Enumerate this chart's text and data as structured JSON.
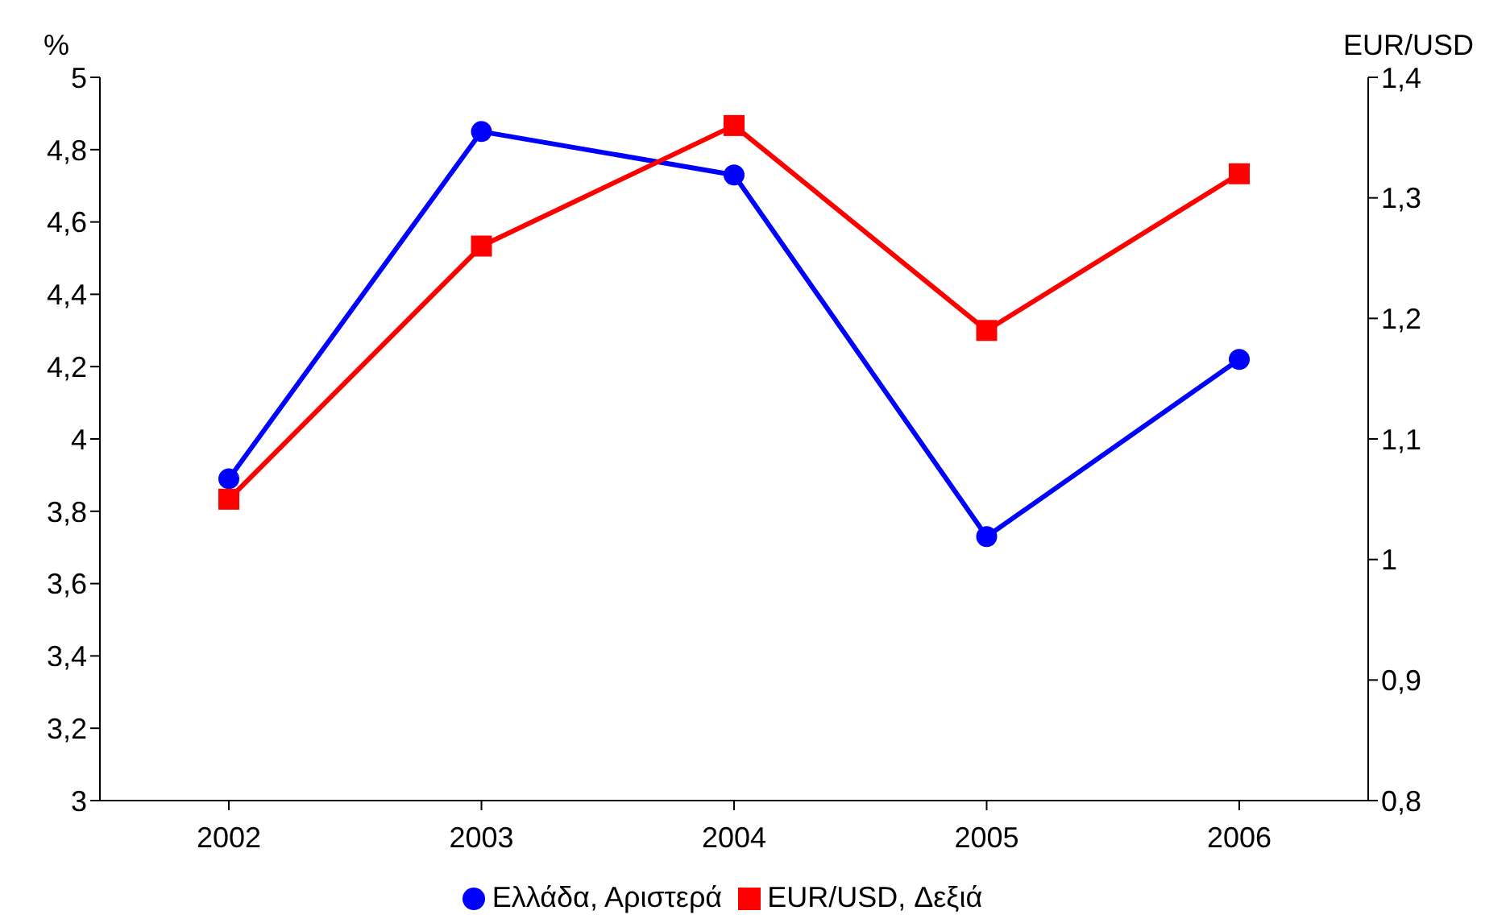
{
  "chart_data": {
    "type": "line",
    "ylabel": "%",
    "y2label": "EUR/USD",
    "categories": [
      "2002",
      "2003",
      "2004",
      "2005",
      "2006"
    ],
    "series": [
      {
        "name": "Ελλάδα, Αριστερά",
        "color": "#0000ff",
        "marker": "circle",
        "values": [
          3.89,
          4.85,
          4.73,
          3.73,
          4.22
        ]
      },
      {
        "name": "EUR/USD, Δεξιά",
        "color": "#ff0000",
        "marker": "square",
        "axis": "y2",
        "values": [
          1.05,
          1.26,
          1.36,
          1.19,
          1.32
        ]
      }
    ],
    "ylim": [
      3,
      5
    ],
    "yticks": [
      3,
      {
        "value": 3.2,
        "label": "3,2"
      },
      {
        "value": 3.4,
        "label": "3,4"
      },
      {
        "value": 3.6,
        "label": "3,6"
      },
      {
        "value": 3.8,
        "label": "3,8"
      },
      4,
      {
        "value": 4.2,
        "label": "4,2"
      },
      {
        "value": 4.4,
        "label": "4,4"
      },
      {
        "value": 4.6,
        "label": "4,6"
      },
      {
        "value": 4.8,
        "label": "4,8"
      },
      5
    ],
    "y2lim": [
      0.8,
      1.4
    ],
    "y2ticks": [
      {
        "value": 0.8,
        "label": "0,8"
      },
      {
        "value": 0.9,
        "label": "0,9"
      },
      1,
      {
        "value": 1.1,
        "label": "1,1"
      },
      {
        "value": 1.2,
        "label": "1,2"
      },
      {
        "value": 1.3,
        "label": "1,3"
      },
      {
        "value": 1.4,
        "label": "1,4"
      }
    ],
    "grid": false,
    "legend": "bottom",
    "line_style": "solid"
  }
}
